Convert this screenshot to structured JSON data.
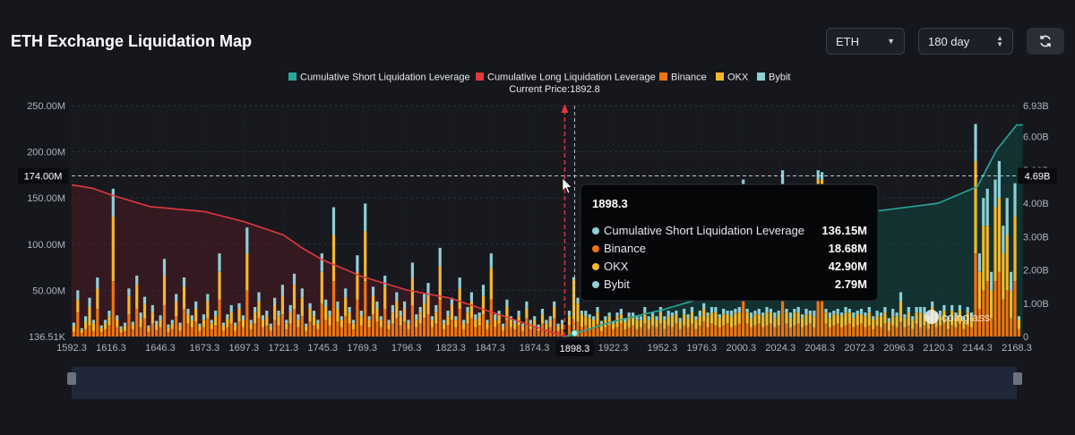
{
  "header": {
    "title": "ETH Exchange Liquidation Map",
    "symbol_select": "ETH",
    "range_select": "180 day"
  },
  "colors": {
    "short_line": "#26a69a",
    "long_line": "#e0393e",
    "binance": "#f0740f",
    "okx": "#f5b82b",
    "bybit": "#8ecfd6"
  },
  "icons": [
    "chevron-down-icon",
    "stepper-icon",
    "refresh-icon",
    "coinglass-logo-icon",
    "cursor-icon"
  ],
  "watermark": "coinglass",
  "chart_data": {
    "type": "bar",
    "annotations": {
      "current_price_label": "Current Price:1892.8"
    },
    "legend_position": "top-center",
    "legend": [
      {
        "name": "Cumulative Short Liquidation Leverage",
        "color": "#26a69a"
      },
      {
        "name": "Cumulative Long Liquidation Leverage",
        "color": "#e0393e"
      },
      {
        "name": "Binance",
        "color": "#f0740f"
      },
      {
        "name": "OKX",
        "color": "#f5b82b"
      },
      {
        "name": "Bybit",
        "color": "#8ecfd6"
      }
    ],
    "x_ticks": [
      "1592.3",
      "1616.3",
      "1646.3",
      "1673.3",
      "1697.3",
      "1721.3",
      "1745.3",
      "1769.3",
      "1796.3",
      "1823.3",
      "1847.3",
      "1874.3",
      "1898.3",
      "1922.3",
      "1952.3",
      "1976.3",
      "2000.3",
      "2024.3",
      "2048.3",
      "2072.3",
      "2096.3",
      "2120.3",
      "2144.3",
      "2168.3"
    ],
    "x_range": [
      1592.3,
      2168.3
    ],
    "current_price": 1892.8,
    "y_left": {
      "ticks": [
        "136.51K",
        "50.00M",
        "100.00M",
        "150.00M",
        "200.00M",
        "250.00M"
      ],
      "range": [
        0,
        250
      ],
      "unit": "M",
      "crosshair_label": "174.00M",
      "crosshair_value": 174
    },
    "y_right": {
      "ticks": [
        "0",
        "1.00B",
        "2.00B",
        "3.00B",
        "4.00B",
        "5.00B",
        "6.00B",
        "6.93B"
      ],
      "range": [
        0,
        6.93
      ],
      "unit": "B",
      "crosshair_label": "4.69B"
    },
    "grid": true,
    "long_curve": [
      [
        1592.3,
        4.55
      ],
      [
        1605,
        4.45
      ],
      [
        1616.3,
        4.25
      ],
      [
        1640,
        3.9
      ],
      [
        1673.3,
        3.75
      ],
      [
        1697.3,
        3.45
      ],
      [
        1721.3,
        3.05
      ],
      [
        1733,
        2.65
      ],
      [
        1745.3,
        2.3
      ],
      [
        1769.3,
        1.8
      ],
      [
        1796.3,
        1.4
      ],
      [
        1823.3,
        1.15
      ],
      [
        1847.3,
        0.75
      ],
      [
        1874.3,
        0.3
      ],
      [
        1892.8,
        0
      ]
    ],
    "short_curve": [
      [
        1892.8,
        0
      ],
      [
        1898.3,
        0.08
      ],
      [
        1922.3,
        0.45
      ],
      [
        1952.3,
        0.8
      ],
      [
        1976.3,
        1.15
      ],
      [
        1987,
        1.25
      ],
      [
        2072.3,
        3.7
      ],
      [
        2096.3,
        3.85
      ],
      [
        2120.3,
        4.0
      ],
      [
        2144.3,
        4.5
      ],
      [
        2156,
        5.6
      ],
      [
        2168.3,
        6.35
      ],
      [
        2172,
        6.35
      ]
    ],
    "bars": [
      [
        1593.6,
        5,
        6,
        4
      ],
      [
        1596,
        26,
        14,
        10
      ],
      [
        1598.4,
        4,
        3,
        2
      ],
      [
        1600.8,
        8,
        8,
        6
      ],
      [
        1603.2,
        12,
        20,
        10
      ],
      [
        1605.6,
        6,
        8,
        4
      ],
      [
        1608,
        30,
        22,
        12
      ],
      [
        1610.4,
        5,
        4,
        3
      ],
      [
        1612.8,
        8,
        6,
        4
      ],
      [
        1615.2,
        12,
        10,
        6
      ],
      [
        1617.6,
        60,
        70,
        30
      ],
      [
        1620,
        10,
        8,
        5
      ],
      [
        1622.4,
        4,
        4,
        3
      ],
      [
        1624.8,
        6,
        6,
        3
      ],
      [
        1627.2,
        24,
        20,
        8
      ],
      [
        1629.6,
        8,
        5,
        3
      ],
      [
        1632,
        30,
        26,
        10
      ],
      [
        1634.4,
        10,
        10,
        6
      ],
      [
        1636.8,
        20,
        15,
        8
      ],
      [
        1639.2,
        5,
        5,
        2
      ],
      [
        1641.6,
        14,
        12,
        8
      ],
      [
        1644,
        7,
        6,
        4
      ],
      [
        1646.4,
        10,
        8,
        5
      ],
      [
        1648.8,
        34,
        32,
        18
      ],
      [
        1651.2,
        5,
        5,
        3
      ],
      [
        1653.6,
        8,
        6,
        4
      ],
      [
        1656,
        22,
        16,
        8
      ],
      [
        1658.4,
        6,
        6,
        3
      ],
      [
        1660.8,
        30,
        24,
        10
      ],
      [
        1663.2,
        14,
        10,
        6
      ],
      [
        1665.6,
        10,
        8,
        5
      ],
      [
        1668,
        16,
        14,
        8
      ],
      [
        1670.4,
        6,
        5,
        3
      ],
      [
        1672.8,
        10,
        8,
        6
      ],
      [
        1675.2,
        20,
        18,
        8
      ],
      [
        1677.6,
        8,
        6,
        4
      ],
      [
        1680,
        12,
        10,
        6
      ],
      [
        1682.4,
        40,
        30,
        20
      ],
      [
        1684.8,
        6,
        6,
        3
      ],
      [
        1687.2,
        10,
        9,
        5
      ],
      [
        1689.6,
        14,
        12,
        8
      ],
      [
        1692,
        6,
        6,
        3
      ],
      [
        1694.4,
        16,
        14,
        6
      ],
      [
        1696.8,
        10,
        8,
        5
      ],
      [
        1699.2,
        50,
        40,
        28
      ],
      [
        1701.6,
        8,
        6,
        4
      ],
      [
        1704,
        14,
        12,
        6
      ],
      [
        1706.4,
        20,
        18,
        10
      ],
      [
        1708.8,
        10,
        8,
        5
      ],
      [
        1711.2,
        12,
        10,
        6
      ],
      [
        1713.6,
        6,
        5,
        3
      ],
      [
        1716,
        18,
        16,
        8
      ],
      [
        1718.4,
        12,
        10,
        6
      ],
      [
        1720.8,
        24,
        20,
        12
      ],
      [
        1723.2,
        8,
        6,
        4
      ],
      [
        1725.6,
        14,
        12,
        8
      ],
      [
        1728,
        30,
        26,
        12
      ],
      [
        1730.4,
        10,
        8,
        6
      ],
      [
        1732.8,
        22,
        20,
        10
      ],
      [
        1735.2,
        6,
        5,
        3
      ],
      [
        1737.6,
        16,
        14,
        6
      ],
      [
        1740,
        12,
        10,
        6
      ],
      [
        1742.4,
        8,
        6,
        4
      ],
      [
        1744.8,
        36,
        34,
        20
      ],
      [
        1747.2,
        18,
        14,
        8
      ],
      [
        1749.6,
        12,
        10,
        6
      ],
      [
        1752,
        60,
        50,
        30
      ],
      [
        1754.4,
        16,
        14,
        8
      ],
      [
        1756.8,
        10,
        8,
        4
      ],
      [
        1759.2,
        22,
        20,
        10
      ],
      [
        1761.6,
        14,
        12,
        6
      ],
      [
        1764,
        8,
        6,
        4
      ],
      [
        1766.4,
        40,
        30,
        18
      ],
      [
        1768.8,
        12,
        10,
        6
      ],
      [
        1771.2,
        60,
        54,
        30
      ],
      [
        1773.6,
        10,
        8,
        4
      ],
      [
        1776,
        24,
        20,
        10
      ],
      [
        1778.4,
        16,
        14,
        8
      ],
      [
        1780.8,
        10,
        8,
        4
      ],
      [
        1783.2,
        30,
        24,
        12
      ],
      [
        1785.6,
        8,
        6,
        4
      ],
      [
        1788,
        14,
        12,
        8
      ],
      [
        1790.4,
        20,
        18,
        10
      ],
      [
        1792.8,
        12,
        10,
        6
      ],
      [
        1795.2,
        16,
        14,
        8
      ],
      [
        1797.6,
        8,
        6,
        4
      ],
      [
        1800,
        34,
        30,
        16
      ],
      [
        1802.4,
        10,
        8,
        6
      ],
      [
        1804.8,
        14,
        12,
        6
      ],
      [
        1807.2,
        20,
        16,
        10
      ],
      [
        1809.6,
        24,
        20,
        14
      ],
      [
        1812,
        10,
        8,
        4
      ],
      [
        1814.4,
        14,
        12,
        8
      ],
      [
        1816.8,
        40,
        36,
        20
      ],
      [
        1819.2,
        8,
        6,
        4
      ],
      [
        1821.6,
        12,
        10,
        6
      ],
      [
        1824,
        18,
        16,
        8
      ],
      [
        1826.4,
        10,
        8,
        4
      ],
      [
        1828.8,
        30,
        22,
        12
      ],
      [
        1831.2,
        8,
        6,
        4
      ],
      [
        1833.6,
        14,
        12,
        6
      ],
      [
        1836,
        20,
        18,
        10
      ],
      [
        1838.4,
        10,
        8,
        6
      ],
      [
        1840.8,
        12,
        10,
        4
      ],
      [
        1843.2,
        24,
        20,
        12
      ],
      [
        1845.6,
        8,
        6,
        4
      ],
      [
        1848,
        40,
        34,
        16
      ],
      [
        1850.4,
        10,
        8,
        6
      ],
      [
        1852.8,
        14,
        10,
        4
      ],
      [
        1855.2,
        6,
        5,
        3
      ],
      [
        1857.6,
        18,
        14,
        8
      ],
      [
        1860,
        10,
        8,
        4
      ],
      [
        1862.4,
        8,
        6,
        4
      ],
      [
        1864.8,
        12,
        10,
        6
      ],
      [
        1867.2,
        6,
        5,
        3
      ],
      [
        1869.6,
        20,
        10,
        8
      ],
      [
        1872,
        8,
        6,
        4
      ],
      [
        1874.4,
        10,
        8,
        4
      ],
      [
        1876.8,
        6,
        4,
        3
      ],
      [
        1879.2,
        14,
        10,
        6
      ],
      [
        1881.6,
        8,
        6,
        4
      ],
      [
        1884,
        10,
        8,
        4
      ],
      [
        1886.4,
        20,
        12,
        6
      ],
      [
        1888.8,
        6,
        5,
        3
      ],
      [
        1891.2,
        8,
        6,
        4
      ],
      [
        1895.6,
        12,
        10,
        6
      ],
      [
        1898.3,
        18.68,
        42.9,
        2.79
      ],
      [
        1900.8,
        16,
        20,
        6
      ],
      [
        1903.2,
        10,
        14,
        4
      ],
      [
        1905.6,
        12,
        10,
        6
      ],
      [
        1908,
        8,
        12,
        4
      ],
      [
        1910.4,
        10,
        8,
        4
      ],
      [
        1912.8,
        14,
        12,
        6
      ],
      [
        1915.2,
        6,
        8,
        3
      ],
      [
        1917.6,
        10,
        8,
        4
      ],
      [
        1920,
        12,
        10,
        4
      ],
      [
        1922.4,
        8,
        6,
        3
      ],
      [
        1924.8,
        10,
        12,
        4
      ],
      [
        1927.2,
        14,
        10,
        6
      ],
      [
        1929.6,
        8,
        8,
        4
      ],
      [
        1932,
        10,
        12,
        4
      ],
      [
        1934.4,
        12,
        10,
        4
      ],
      [
        1936.8,
        8,
        10,
        4
      ],
      [
        1939.2,
        10,
        8,
        4
      ],
      [
        1941.6,
        14,
        12,
        6
      ],
      [
        1944,
        8,
        10,
        4
      ],
      [
        1946.4,
        12,
        10,
        4
      ],
      [
        1948.8,
        10,
        8,
        4
      ],
      [
        1951.2,
        14,
        12,
        6
      ],
      [
        1953.6,
        8,
        10,
        4
      ],
      [
        1956,
        12,
        10,
        6
      ],
      [
        1958.4,
        10,
        12,
        4
      ],
      [
        1960.8,
        14,
        10,
        4
      ],
      [
        1963.2,
        8,
        8,
        4
      ],
      [
        1965.6,
        12,
        12,
        6
      ],
      [
        1968,
        10,
        10,
        4
      ],
      [
        1970.4,
        14,
        12,
        6
      ],
      [
        1972.8,
        8,
        10,
        4
      ],
      [
        1975.2,
        12,
        10,
        6
      ],
      [
        1977.6,
        16,
        14,
        6
      ],
      [
        1980,
        10,
        12,
        4
      ],
      [
        1982.4,
        14,
        12,
        6
      ],
      [
        1984.8,
        12,
        14,
        6
      ],
      [
        1987.2,
        10,
        10,
        4
      ],
      [
        1989.6,
        12,
        12,
        6
      ],
      [
        1992,
        14,
        10,
        4
      ],
      [
        1994.4,
        10,
        12,
        6
      ],
      [
        1996.8,
        12,
        14,
        4
      ],
      [
        1999.2,
        14,
        12,
        6
      ],
      [
        2001.6,
        50,
        60,
        60
      ],
      [
        2004,
        14,
        12,
        4
      ],
      [
        2006.4,
        10,
        10,
        6
      ],
      [
        2008.8,
        12,
        12,
        4
      ],
      [
        2011.2,
        14,
        10,
        6
      ],
      [
        2013.6,
        10,
        12,
        4
      ],
      [
        2016,
        12,
        14,
        6
      ],
      [
        2018.4,
        14,
        12,
        4
      ],
      [
        2020.8,
        10,
        10,
        6
      ],
      [
        2023.2,
        12,
        12,
        4
      ],
      [
        2025.6,
        55,
        60,
        65
      ],
      [
        2028,
        14,
        12,
        4
      ],
      [
        2030.4,
        10,
        10,
        6
      ],
      [
        2032.8,
        12,
        14,
        4
      ],
      [
        2035.2,
        14,
        12,
        6
      ],
      [
        2037.6,
        10,
        10,
        4
      ],
      [
        2040,
        12,
        12,
        6
      ],
      [
        2042.4,
        14,
        10,
        4
      ],
      [
        2044.8,
        10,
        12,
        6
      ],
      [
        2047.2,
        80,
        90,
        10
      ],
      [
        2049.6,
        80,
        90,
        8
      ],
      [
        2052,
        14,
        12,
        4
      ],
      [
        2054.4,
        10,
        10,
        6
      ],
      [
        2056.8,
        12,
        12,
        4
      ],
      [
        2059.2,
        14,
        10,
        6
      ],
      [
        2061.6,
        10,
        12,
        4
      ],
      [
        2064,
        12,
        14,
        6
      ],
      [
        2066.4,
        14,
        12,
        4
      ],
      [
        2068.8,
        10,
        10,
        6
      ],
      [
        2071.2,
        12,
        12,
        4
      ],
      [
        2073.6,
        14,
        10,
        6
      ],
      [
        2076,
        10,
        12,
        4
      ],
      [
        2078.4,
        12,
        14,
        6
      ],
      [
        2080.8,
        8,
        10,
        4
      ],
      [
        2083.2,
        12,
        10,
        6
      ],
      [
        2085.6,
        10,
        12,
        4
      ],
      [
        2088,
        14,
        12,
        6
      ],
      [
        2090.4,
        6,
        10,
        4
      ],
      [
        2092.8,
        12,
        10,
        8
      ],
      [
        2095.2,
        10,
        12,
        4
      ],
      [
        2097.6,
        16,
        22,
        10
      ],
      [
        2100,
        10,
        10,
        4
      ],
      [
        2102.4,
        12,
        14,
        6
      ],
      [
        2104.8,
        8,
        10,
        4
      ],
      [
        2107.2,
        14,
        12,
        6
      ],
      [
        2109.6,
        10,
        16,
        6
      ],
      [
        2112,
        12,
        12,
        8
      ],
      [
        2114.4,
        8,
        10,
        4
      ],
      [
        2116.8,
        14,
        18,
        6
      ],
      [
        2119.2,
        10,
        12,
        4
      ],
      [
        2121.6,
        12,
        10,
        6
      ],
      [
        2124,
        14,
        14,
        6
      ],
      [
        2126.4,
        8,
        10,
        4
      ],
      [
        2128.8,
        12,
        16,
        6
      ],
      [
        2131.2,
        10,
        12,
        4
      ],
      [
        2133.6,
        14,
        14,
        6
      ],
      [
        2136,
        8,
        10,
        4
      ],
      [
        2138.4,
        12,
        14,
        6
      ],
      [
        2140.8,
        10,
        12,
        4
      ],
      [
        2143.2,
        90,
        100,
        40
      ],
      [
        2145.6,
        30,
        40,
        20
      ],
      [
        2148,
        50,
        70,
        30
      ],
      [
        2150.4,
        60,
        60,
        40
      ],
      [
        2152.8,
        20,
        30,
        20
      ],
      [
        2155.2,
        60,
        80,
        30
      ],
      [
        2157.6,
        70,
        80,
        40
      ],
      [
        2160,
        40,
        50,
        30
      ],
      [
        2162.4,
        50,
        60,
        40
      ],
      [
        2164.8,
        20,
        30,
        20
      ],
      [
        2167.2,
        60,
        70,
        36
      ],
      [
        2169.6,
        8,
        10,
        4
      ]
    ],
    "tooltip": {
      "title": "1898.3",
      "rows": [
        {
          "label": "Cumulative Short Liquidation Leverage",
          "value": "136.15M",
          "color": "#8ecfd6"
        },
        {
          "label": "Binance",
          "value": "18.68M",
          "color": "#f0740f"
        },
        {
          "label": "OKX",
          "value": "42.90M",
          "color": "#f5b82b"
        },
        {
          "label": "Bybit",
          "value": "2.79M",
          "color": "#8ecfd6"
        }
      ]
    }
  }
}
